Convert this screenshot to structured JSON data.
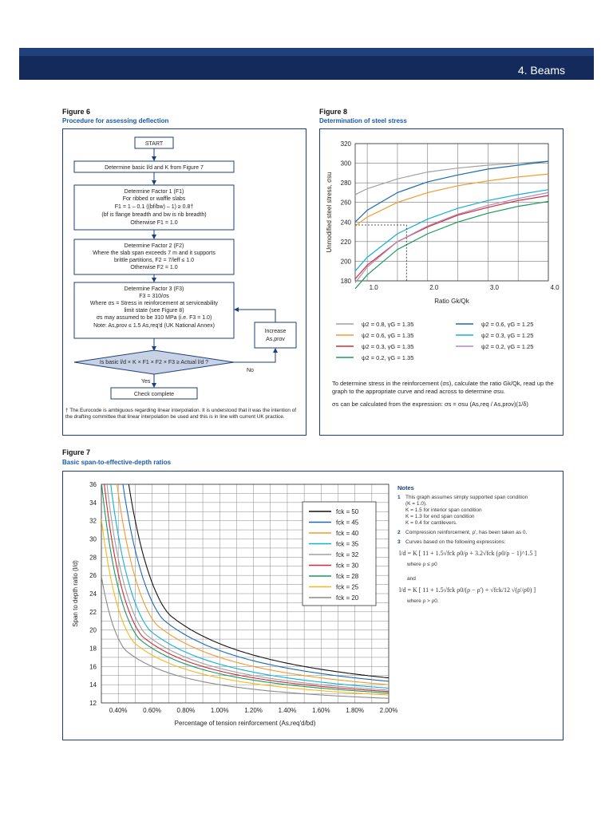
{
  "header": {
    "title": "4. Beams"
  },
  "figure6": {
    "label": "Figure 6",
    "subtitle": "Procedure for assessing deflection",
    "start": "START",
    "step1": "Determine basic l/d and K from Figure 7",
    "factor1": [
      "Determine Factor 1 (F1)",
      "For ribbed or waffle slabs",
      "F1 = 1 – 0.1 ((bf/bw) – 1) ≥ 0.8†",
      "(bf is flange breadth and bw is rib breadth)",
      "Otherwise F1 = 1.0"
    ],
    "factor2": [
      "Determine Factor 2 (F2)",
      "Where the slab span exceeds 7 m and it supports",
      "brittle partitions, F2 = 7/leff ≤ 1.0",
      "Otherwise F2 = 1.0"
    ],
    "factor3": [
      "Determine Factor 3 (F3)",
      "F3 = 310/σs",
      "Where σs = Stress in reinforcement at serviceability",
      "limit state (see Figure 8)",
      "σs may assumed to be 310 MPa (i.e. F3 = 1.0)",
      "Note: As,prov ≤ 1.5 As,req'd (UK National Annex)"
    ],
    "increase": [
      "Increase",
      "As,prov"
    ],
    "decision": "Is basic l/d × K × F1 × F2 × F3 ≥ Actual l/d ?",
    "yes": "Yes",
    "no": "No",
    "complete": "Check complete",
    "footnote": "† The Eurocode is ambiguous regarding linear interpolation. It is understood that it was the intention of the drafting committee that linear interpolation be used and this is in line with current UK practice."
  },
  "figure8": {
    "label": "Figure 8",
    "subtitle": "Determination of steel stress",
    "explanation1": "To determine stress in the reinforcement (σs), calculate the ratio Gk/Qk, read up the graph to the appropriate curve and read across to determine σsu.",
    "explanation2": "σs can be calculated from the expression:  σs = σsu (As,req / As,prov)(1/δ)",
    "chart_data": {
      "type": "line",
      "xlabel": "Ratio Gk/Qk",
      "ylabel": "Unmodified steel stress, σsu",
      "xlim": [
        0.8,
        4.0
      ],
      "ylim": [
        180,
        320
      ],
      "xticks": [
        "1.0",
        "2.0",
        "3.0",
        "4.0"
      ],
      "yticks": [
        "180",
        "200",
        "220",
        "240",
        "260",
        "280",
        "300",
        "320"
      ],
      "grid": true,
      "legend_position": "bottom",
      "series": [
        {
          "name": "ψ2 = 0.8, γG = 1.35",
          "color": "#a0a0a0",
          "x": [
            0.8,
            1.0,
            1.5,
            2.0,
            2.5,
            3.0,
            3.5,
            4.0
          ],
          "y": [
            268,
            274,
            284,
            291,
            295,
            298,
            300,
            302
          ]
        },
        {
          "name": "ψ2 = 0.6, γG = 1.35",
          "color": "#f39a2a",
          "x": [
            0.8,
            1.0,
            1.5,
            2.0,
            2.5,
            3.0,
            3.5,
            4.0
          ],
          "y": [
            236,
            245,
            260,
            270,
            277,
            282,
            286,
            289
          ]
        },
        {
          "name": "ψ2 = 0.3, γG = 1.35",
          "color": "#d02a3a",
          "x": [
            0.8,
            1.0,
            1.5,
            2.0,
            2.5,
            3.0,
            3.5,
            4.0
          ],
          "y": [
            182,
            196,
            220,
            235,
            247,
            255,
            262,
            267
          ]
        },
        {
          "name": "ψ2 = 0.2, γG = 1.35",
          "color": "#1a9a5a",
          "x": [
            0.8,
            1.0,
            1.5,
            2.0,
            2.5,
            3.0,
            3.5,
            4.0
          ],
          "y": [
            172,
            186,
            212,
            228,
            240,
            249,
            256,
            261
          ]
        },
        {
          "name": "ψ2 = 0.6, γG = 1.25",
          "color": "#1a6ab0",
          "x": [
            0.8,
            1.0,
            1.5,
            2.0,
            2.5,
            3.0,
            3.5,
            4.0
          ],
          "y": [
            240,
            252,
            270,
            281,
            288,
            294,
            298,
            302
          ]
        },
        {
          "name": "ψ2 = 0.3, γG = 1.25",
          "color": "#10b0d8",
          "x": [
            0.8,
            1.0,
            1.5,
            2.0,
            2.5,
            3.0,
            3.5,
            4.0
          ],
          "y": [
            190,
            204,
            228,
            243,
            254,
            262,
            268,
            273
          ]
        },
        {
          "name": "ψ2 = 0.2, γG = 1.25",
          "color": "#b08ab8",
          "x": [
            0.8,
            1.0,
            1.5,
            2.0,
            2.5,
            3.0,
            3.5,
            4.0
          ],
          "y": [
            178,
            194,
            220,
            236,
            248,
            257,
            264,
            270
          ]
        }
      ],
      "annotation": {
        "x": 1.65,
        "y": 237
      }
    }
  },
  "figure7": {
    "label": "Figure 7",
    "subtitle": "Basic span-to-effective-depth ratios",
    "chart_data": {
      "type": "line",
      "xlabel": "Percentage of tension reinforcement (As,req'd/bd)",
      "ylabel": "Span to depth ratio (l/d)",
      "xlim": [
        0.3,
        2.0
      ],
      "ylim": [
        12,
        36
      ],
      "xticks": [
        "0.40%",
        "0.60%",
        "0.80%",
        "1.00%",
        "1.20%",
        "1.40%",
        "1.60%",
        "1.80%",
        "2.00%"
      ],
      "yticks": [
        "12",
        "14",
        "16",
        "18",
        "20",
        "22",
        "24",
        "26",
        "28",
        "30",
        "32",
        "34",
        "36"
      ],
      "grid": true,
      "legend_position": "top-right",
      "series": [
        {
          "name": "fck = 50",
          "fck": 50,
          "color": "#111111"
        },
        {
          "name": "fck = 45",
          "fck": 45,
          "color": "#1a6ab0"
        },
        {
          "name": "fck = 40",
          "fck": 40,
          "color": "#f39a2a"
        },
        {
          "name": "fck = 35",
          "fck": 35,
          "color": "#10b0d8"
        },
        {
          "name": "fck = 32",
          "fck": 32,
          "color": "#a0a0a0"
        },
        {
          "name": "fck = 30",
          "fck": 30,
          "color": "#d02a3a"
        },
        {
          "name": "fck = 28",
          "fck": 28,
          "color": "#1a9a5a"
        },
        {
          "name": "fck = 25",
          "fck": 25,
          "color": "#f5b81a"
        },
        {
          "name": "fck = 20",
          "fck": 20,
          "color": "#8a8a8a"
        }
      ]
    },
    "notes": {
      "heading": "Notes",
      "n1": [
        "This graph assumes simply supported span condition",
        "(K = 1.0).",
        "K = 1.5 for interior span condition",
        "K = 1.3 for end span condition",
        "K = 0.4 for cantilevers."
      ],
      "n2": "Compression reinforcement, ρ', has been taken as 0.",
      "n3": "Curves based on the following expressions:",
      "formula1": "l/d = K [ 11 + 1.5√fck ρ0/ρ + 3.2√fck (ρ0/ρ − 1)^1.5 ]",
      "where1": "where ρ ≤ ρ0",
      "and": "and",
      "formula2": "l/d = K [ 11 + 1.5√fck ρ0/(ρ − ρ') + √fck/12 √(ρ'/ρ0) ]",
      "where2": "where ρ > ρ0."
    }
  }
}
